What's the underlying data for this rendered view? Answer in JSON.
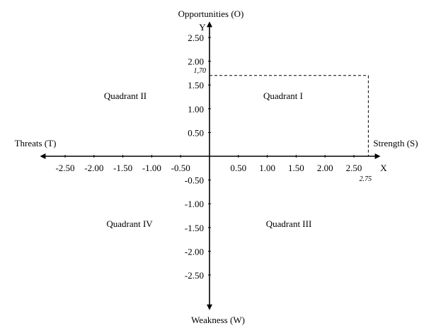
{
  "diagram": {
    "axis_labels": {
      "top": "Opportunities (O)",
      "bottom": "Weakness (W)",
      "left": "Threats (T)",
      "right": "Strength (S)",
      "x_letter": "X",
      "y_letter": "Y"
    },
    "x_ticks": [
      {
        "value": -2.5,
        "label": "-2.50"
      },
      {
        "value": -2.0,
        "label": "-2.00"
      },
      {
        "value": -1.5,
        "label": "-1.50"
      },
      {
        "value": -1.0,
        "label": "-1.00"
      },
      {
        "value": -0.5,
        "label": "-0.50"
      },
      {
        "value": 0.5,
        "label": "0.50"
      },
      {
        "value": 1.0,
        "label": "1.00"
      },
      {
        "value": 1.5,
        "label": "1.50"
      },
      {
        "value": 2.0,
        "label": "2.00"
      },
      {
        "value": 2.5,
        "label": "2.50"
      }
    ],
    "y_ticks": [
      {
        "value": 2.5,
        "label": "2.50"
      },
      {
        "value": 2.0,
        "label": "2.00"
      },
      {
        "value": 1.5,
        "label": "1.50"
      },
      {
        "value": 1.0,
        "label": "1.00"
      },
      {
        "value": 0.5,
        "label": "0.50"
      },
      {
        "value": -0.5,
        "label": "-0.50"
      },
      {
        "value": -1.0,
        "label": "-1.00"
      },
      {
        "value": -1.5,
        "label": "-1.50"
      },
      {
        "value": -2.0,
        "label": "-2.00"
      },
      {
        "value": -2.5,
        "label": "-2.50"
      }
    ],
    "quadrants": {
      "q1": "Quadrant I",
      "q2": "Quadrant II",
      "q3": "Quadrant III",
      "q4": "Quadrant IV"
    },
    "point": {
      "x": 2.75,
      "y": 1.7,
      "x_label": "2.75",
      "y_label": "1,70"
    }
  }
}
